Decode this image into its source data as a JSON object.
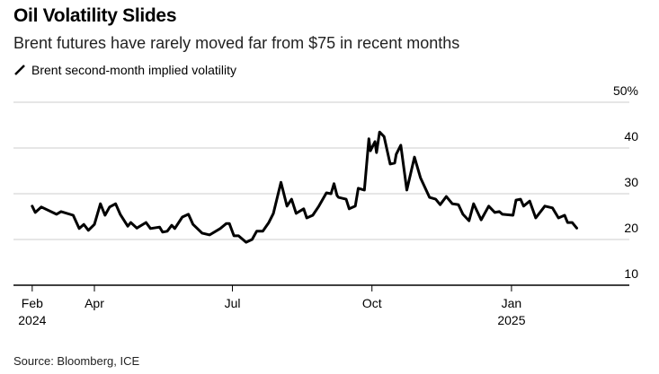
{
  "title": "Oil Volatility Slides",
  "subtitle": "Brent futures have rarely moved far from $75 in recent months",
  "source": "Source: Bloomberg, ICE",
  "chart_data": {
    "type": "line",
    "title": "Oil Volatility Slides",
    "legend_position": "top-left",
    "grid": true,
    "ylim": [
      10,
      50
    ],
    "y_ticks": [
      {
        "value": 50,
        "label": "50%"
      },
      {
        "value": 40,
        "label": "40"
      },
      {
        "value": 30,
        "label": "30"
      },
      {
        "value": 20,
        "label": "20"
      },
      {
        "value": 10,
        "label": "10"
      }
    ],
    "x_ticks": [
      {
        "date": "2024-02-20",
        "label": "Feb",
        "sublabel": "2024"
      },
      {
        "date": "2024-04-01",
        "label": "Apr",
        "sublabel": ""
      },
      {
        "date": "2024-07-01",
        "label": "Jul",
        "sublabel": ""
      },
      {
        "date": "2024-10-01",
        "label": "Oct",
        "sublabel": ""
      },
      {
        "date": "2025-01-01",
        "label": "Jan",
        "sublabel": "2025"
      }
    ],
    "line_color": "#000000",
    "series": [
      {
        "name": "Brent second-month implied volatility",
        "x": [
          "2024-02-20",
          "2024-02-22",
          "2024-02-26",
          "2024-03-07",
          "2024-03-10",
          "2024-03-18",
          "2024-03-22",
          "2024-03-25",
          "2024-03-28",
          "2024-04-01",
          "2024-04-05",
          "2024-04-08",
          "2024-04-11",
          "2024-04-15",
          "2024-04-18",
          "2024-04-23",
          "2024-04-25",
          "2024-04-29",
          "2024-05-05",
          "2024-05-08",
          "2024-05-14",
          "2024-05-16",
          "2024-05-19",
          "2024-05-22",
          "2024-05-24",
          "2024-05-29",
          "2024-06-02",
          "2024-06-05",
          "2024-06-11",
          "2024-06-16",
          "2024-06-23",
          "2024-06-27",
          "2024-06-29",
          "2024-07-02",
          "2024-07-05",
          "2024-07-10",
          "2024-07-14",
          "2024-07-17",
          "2024-07-21",
          "2024-07-25",
          "2024-07-28",
          "2024-08-02",
          "2024-08-06",
          "2024-08-09",
          "2024-08-12",
          "2024-08-17",
          "2024-08-19",
          "2024-08-23",
          "2024-08-27",
          "2024-09-01",
          "2024-09-04",
          "2024-09-06",
          "2024-09-08",
          "2024-09-09",
          "2024-09-14",
          "2024-09-16",
          "2024-09-20",
          "2024-09-22",
          "2024-09-26",
          "2024-09-29",
          "2024-09-30",
          "2024-10-03",
          "2024-10-04",
          "2024-10-06",
          "2024-10-09",
          "2024-10-13",
          "2024-10-16",
          "2024-10-17",
          "2024-10-20",
          "2024-10-24",
          "2024-10-29",
          "2024-11-02",
          "2024-11-08",
          "2024-11-12",
          "2024-11-15",
          "2024-11-19",
          "2024-11-23",
          "2024-11-27",
          "2024-11-30",
          "2024-12-04",
          "2024-12-07",
          "2024-12-12",
          "2024-12-17",
          "2024-12-21",
          "2024-12-24",
          "2024-12-26",
          "2025-01-02",
          "2025-01-04",
          "2025-01-07",
          "2025-01-09",
          "2025-01-13",
          "2025-01-17",
          "2025-01-23",
          "2025-01-28",
          "2025-02-01",
          "2025-02-05",
          "2025-02-07",
          "2025-02-10",
          "2025-02-13"
        ],
        "values": [
          27.3,
          25.9,
          27.1,
          25.5,
          26.1,
          25.3,
          22.4,
          23.3,
          22.0,
          23.3,
          27.8,
          25.3,
          27.1,
          27.8,
          25.5,
          22.9,
          23.7,
          22.5,
          23.7,
          22.4,
          22.7,
          21.6,
          21.8,
          23.1,
          22.4,
          24.9,
          25.5,
          23.3,
          21.4,
          21.0,
          22.4,
          23.5,
          23.5,
          20.8,
          20.8,
          19.4,
          20.0,
          21.8,
          21.8,
          23.7,
          25.7,
          32.5,
          27.3,
          28.8,
          25.7,
          26.7,
          24.7,
          25.3,
          27.3,
          30.2,
          30.0,
          32.2,
          29.6,
          29.2,
          28.8,
          26.7,
          27.3,
          31.2,
          30.8,
          42.0,
          39.4,
          41.4,
          39.0,
          43.5,
          42.5,
          36.5,
          36.7,
          38.6,
          40.6,
          30.8,
          38.0,
          33.5,
          29.2,
          28.8,
          27.6,
          29.4,
          27.8,
          27.6,
          25.5,
          24.1,
          27.8,
          24.3,
          27.3,
          25.9,
          26.1,
          25.5,
          25.3,
          28.6,
          28.8,
          27.3,
          28.4,
          24.7,
          27.3,
          26.9,
          24.7,
          25.3,
          23.7,
          23.7,
          22.5
        ]
      }
    ]
  }
}
